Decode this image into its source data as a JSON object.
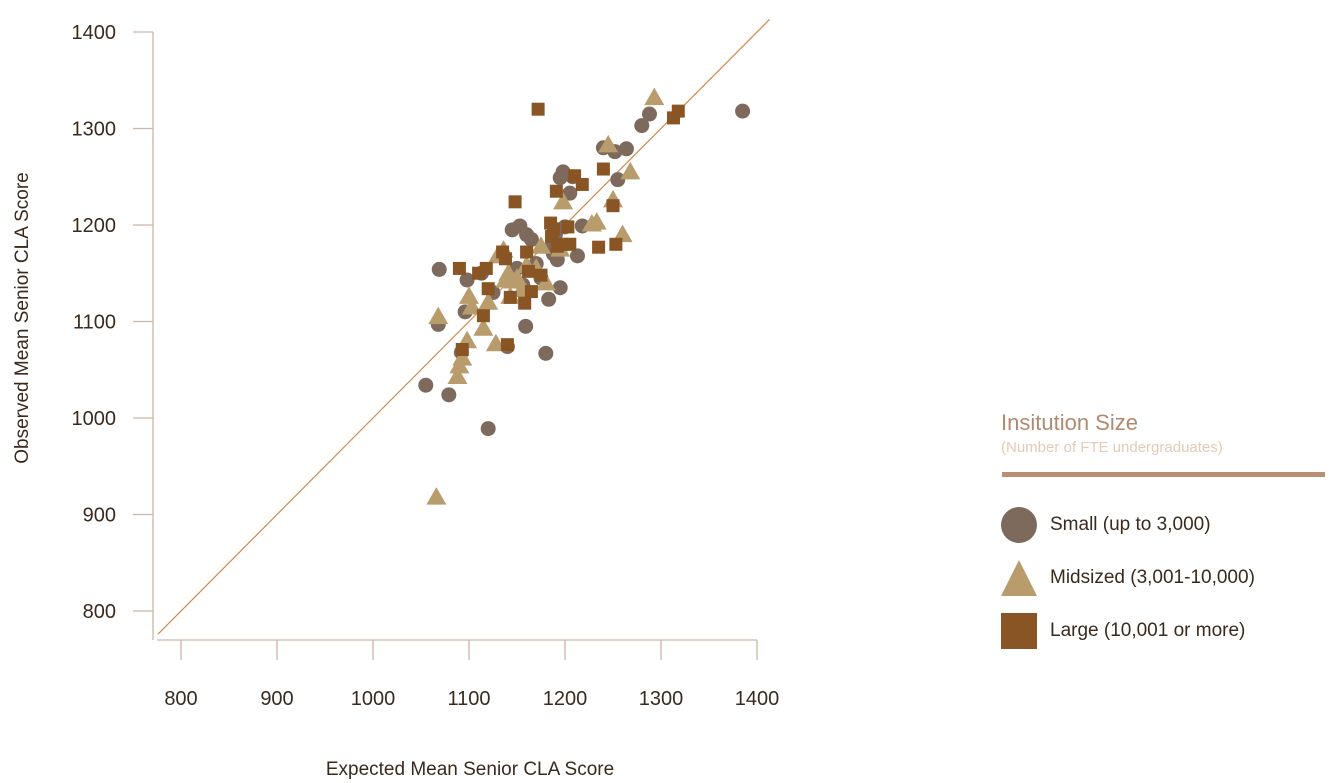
{
  "chart_data": {
    "type": "scatter",
    "xlabel": "Expected Mean Senior CLA Score",
    "ylabel": "Observed Mean Senior CLA Score",
    "xlim": [
      775,
      1400
    ],
    "ylim": [
      770,
      1400
    ],
    "x_ticks": [
      800,
      900,
      1000,
      1100,
      1200,
      1300,
      1400
    ],
    "y_ticks": [
      800,
      900,
      1000,
      1100,
      1200,
      1300,
      1400
    ],
    "reference_line": {
      "type": "y = x",
      "color": "#d4874a"
    },
    "legend": {
      "title": "Insitution Size",
      "subtitle": "(Number of FTE undergraduates)",
      "placement": "right"
    },
    "series": [
      {
        "name": "Small (up to 3,000)",
        "marker": "circle",
        "color": "#7d6a5d",
        "points": [
          [
            1055,
            1034
          ],
          [
            1068,
            1097
          ],
          [
            1069,
            1154
          ],
          [
            1079,
            1024
          ],
          [
            1092,
            1068
          ],
          [
            1096,
            1110
          ],
          [
            1098,
            1143
          ],
          [
            1113,
            1150
          ],
          [
            1120,
            989
          ],
          [
            1125,
            1130
          ],
          [
            1140,
            1074
          ],
          [
            1145,
            1195
          ],
          [
            1150,
            1155
          ],
          [
            1153,
            1199
          ],
          [
            1156,
            1138
          ],
          [
            1159,
            1095
          ],
          [
            1160,
            1190
          ],
          [
            1165,
            1185
          ],
          [
            1170,
            1160
          ],
          [
            1175,
            1145
          ],
          [
            1180,
            1067
          ],
          [
            1183,
            1123
          ],
          [
            1185,
            1176
          ],
          [
            1188,
            1170
          ],
          [
            1190,
            1190
          ],
          [
            1192,
            1164
          ],
          [
            1195,
            1135
          ],
          [
            1195,
            1249
          ],
          [
            1198,
            1255
          ],
          [
            1200,
            1198
          ],
          [
            1205,
            1233
          ],
          [
            1208,
            1250
          ],
          [
            1213,
            1168
          ],
          [
            1218,
            1199
          ],
          [
            1240,
            1280
          ],
          [
            1252,
            1276
          ],
          [
            1255,
            1247
          ],
          [
            1264,
            1279
          ],
          [
            1280,
            1303
          ],
          [
            1288,
            1315
          ],
          [
            1385,
            1318
          ]
        ]
      },
      {
        "name": "Midsized (3,001-10,000)",
        "marker": "triangle",
        "color": "#b89c6c",
        "points": [
          [
            1066,
            918
          ],
          [
            1068,
            1105
          ],
          [
            1088,
            1043
          ],
          [
            1090,
            1054
          ],
          [
            1093,
            1062
          ],
          [
            1098,
            1080
          ],
          [
            1100,
            1126
          ],
          [
            1103,
            1115
          ],
          [
            1115,
            1093
          ],
          [
            1120,
            1120
          ],
          [
            1128,
            1077
          ],
          [
            1130,
            1168
          ],
          [
            1136,
            1174
          ],
          [
            1138,
            1143
          ],
          [
            1141,
            1150
          ],
          [
            1143,
            1126
          ],
          [
            1146,
            1142
          ],
          [
            1150,
            1145
          ],
          [
            1155,
            1133
          ],
          [
            1160,
            1158
          ],
          [
            1170,
            1155
          ],
          [
            1175,
            1178
          ],
          [
            1180,
            1140
          ],
          [
            1195,
            1175
          ],
          [
            1198,
            1224
          ],
          [
            1228,
            1201
          ],
          [
            1233,
            1203
          ],
          [
            1245,
            1283
          ],
          [
            1250,
            1226
          ],
          [
            1260,
            1190
          ],
          [
            1268,
            1255
          ],
          [
            1293,
            1332
          ]
        ]
      },
      {
        "name": "Large (10,001 or more)",
        "marker": "square",
        "color": "#8a5524",
        "points": [
          [
            1090,
            1155
          ],
          [
            1093,
            1071
          ],
          [
            1110,
            1150
          ],
          [
            1115,
            1106
          ],
          [
            1118,
            1155
          ],
          [
            1120,
            1134
          ],
          [
            1135,
            1172
          ],
          [
            1138,
            1165
          ],
          [
            1140,
            1076
          ],
          [
            1143,
            1125
          ],
          [
            1148,
            1224
          ],
          [
            1158,
            1119
          ],
          [
            1160,
            1172
          ],
          [
            1162,
            1152
          ],
          [
            1165,
            1131
          ],
          [
            1172,
            1320
          ],
          [
            1175,
            1148
          ],
          [
            1185,
            1202
          ],
          [
            1186,
            1188
          ],
          [
            1188,
            1196
          ],
          [
            1191,
            1235
          ],
          [
            1192,
            1178
          ],
          [
            1198,
            1180
          ],
          [
            1203,
            1198
          ],
          [
            1205,
            1180
          ],
          [
            1210,
            1251
          ],
          [
            1218,
            1242
          ],
          [
            1235,
            1177
          ],
          [
            1240,
            1258
          ],
          [
            1250,
            1220
          ],
          [
            1253,
            1180
          ],
          [
            1313,
            1311
          ],
          [
            1318,
            1318
          ]
        ]
      }
    ]
  }
}
